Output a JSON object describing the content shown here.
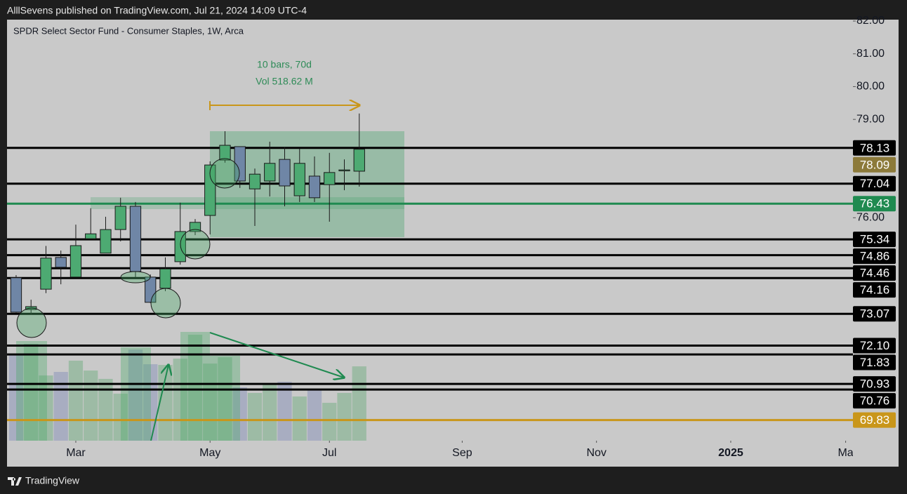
{
  "header": {
    "publisher": "AlllSevens published on TradingView.com, Jul 21, 2024 14:09 UTC-4",
    "brand": "TradingView"
  },
  "chart_data": {
    "type": "candlestick",
    "title": "SPDR Select Sector Fund - Consumer Staples, 1W, Arca",
    "annotations": [
      "10 bars, 70d",
      "Vol 518.62 M"
    ],
    "open": [
      74.17,
      73.2,
      73.82,
      74.79,
      74.19,
      75.36,
      74.92,
      75.64,
      76.35,
      74.19,
      73.85,
      74.66,
      75.58,
      76.07,
      77.76,
      78.17,
      76.88,
      77.12,
      77.78,
      76.67,
      77.27,
      77.01,
      77.43,
      77.42
    ],
    "high": [
      74.25,
      73.5,
      75.14,
      75.0,
      75.79,
      76.29,
      76.03,
      76.61,
      76.48,
      74.27,
      74.79,
      76.46,
      75.96,
      77.72,
      78.64,
      78.17,
      77.5,
      78.32,
      78.15,
      78.11,
      77.87,
      77.98,
      77.78,
      79.18
    ],
    "low": [
      73.1,
      73.05,
      73.7,
      73.97,
      74.19,
      75.36,
      74.92,
      75.28,
      74.17,
      73.4,
      73.76,
      74.57,
      75.47,
      75.49,
      77.68,
      76.91,
      75.75,
      76.65,
      76.35,
      76.48,
      76.48,
      75.88,
      76.84,
      76.95
    ],
    "close": [
      73.12,
      73.29,
      74.77,
      74.49,
      75.15,
      75.51,
      75.64,
      76.35,
      74.36,
      73.42,
      74.44,
      75.58,
      75.86,
      77.61,
      78.21,
      77.12,
      77.33,
      77.66,
      76.97,
      77.66,
      76.61,
      77.38,
      77.46,
      78.09
    ],
    "volume": [
      80.4,
      90.3,
      60.8,
      64.1,
      74.6,
      65.4,
      57.6,
      43.8,
      85.0,
      71.3,
      70.6,
      76.5,
      98.8,
      71.9,
      77.8,
      49.7,
      44.5,
      53.6,
      54.9,
      41.2,
      47.7,
      35.3,
      44.5,
      69.3
    ],
    "up_color": "#4daa72",
    "down_color": "#6f86a6",
    "ylim": [
      69.2,
      82.0
    ],
    "yticks": [
      {
        "value": 82,
        "label": "82.00"
      },
      {
        "value": 81,
        "label": "81.00"
      },
      {
        "value": 80,
        "label": "80.00"
      },
      {
        "value": 79,
        "label": "79.00"
      },
      {
        "value": 76,
        "label": "76.00"
      }
    ],
    "xlim": [
      -0.61,
      56.09
    ],
    "xticks": [
      {
        "value": 4.0,
        "label": "Mar"
      },
      {
        "value": 13.0,
        "label": "May"
      },
      {
        "value": 21.0,
        "label": "Jul"
      },
      {
        "value": 29.9,
        "label": "Sep"
      },
      {
        "value": 38.9,
        "label": "Nov"
      },
      {
        "value": 47.9,
        "label": "2025"
      },
      {
        "value": 55.6,
        "label": "Ma"
      }
    ],
    "levels": [
      {
        "value": 78.13,
        "color": "#000000"
      },
      {
        "value": 77.04,
        "color": "#000000"
      },
      {
        "value": 76.43,
        "color": "#1f8a50"
      },
      {
        "value": 75.34,
        "color": "#000000"
      },
      {
        "value": 74.86,
        "color": "#000000"
      },
      {
        "value": 74.46,
        "color": "#000000"
      },
      {
        "value": 74.16,
        "color": "#000000"
      },
      {
        "value": 73.07,
        "color": "#000000"
      },
      {
        "value": {
          "value": 72.1,
          "label": "72.10"
        },
        "color": "#000000"
      },
      {
        "value": 71.83,
        "color": "#000000"
      },
      {
        "value": 70.93,
        "color": "#000000"
      },
      {
        "value": 70.76,
        "color": "#000000"
      },
      {
        "value": 69.83,
        "color": "#c9961a"
      }
    ],
    "last_price_color": "#8c7a3a"
  }
}
